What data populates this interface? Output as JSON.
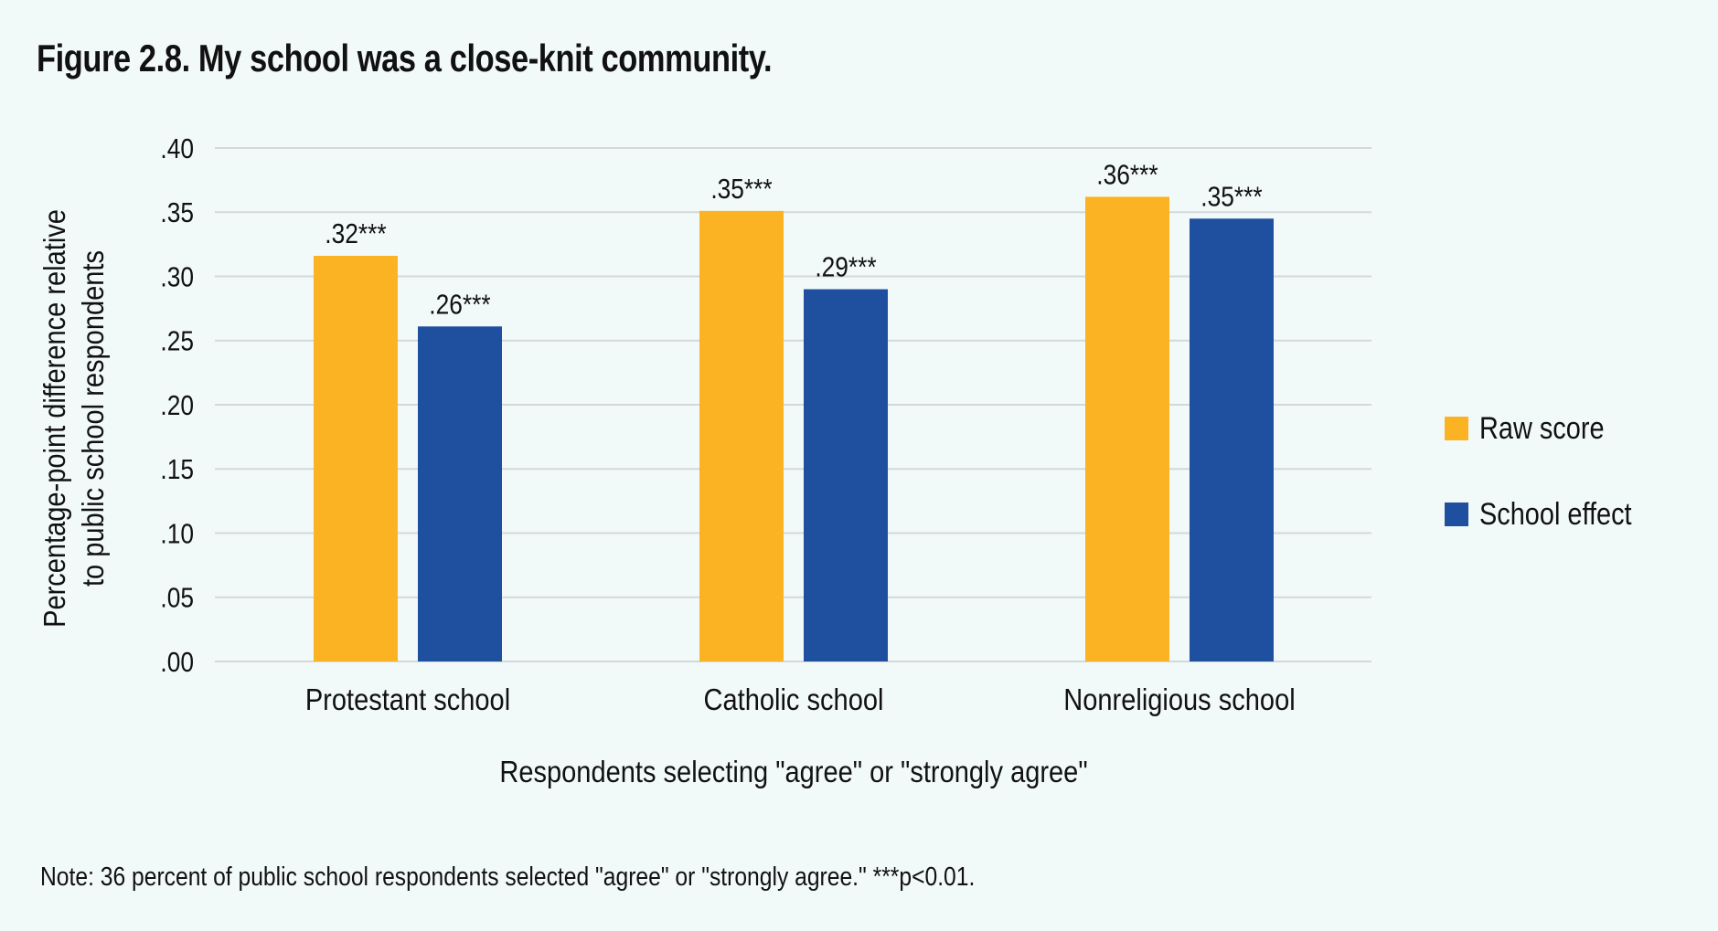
{
  "title": "Figure 2.8. My school was a close-knit community.",
  "note": "Note: 36 percent of public school respondents selected \"agree\" or \"strongly agree.\" ***p<0.01.",
  "colors": {
    "raw": "#fbb323",
    "effect": "#1f50a0",
    "grid": "#d4d8d8",
    "background": "#f2faf9"
  },
  "chart_data": {
    "type": "bar",
    "title": "Figure 2.8. My school was a close-knit community.",
    "categories": [
      "Protestant school",
      "Catholic school",
      "Nonreligious school"
    ],
    "series": [
      {
        "name": "Raw score",
        "values": [
          0.316,
          0.351,
          0.362
        ],
        "labels": [
          ".32***",
          ".35***",
          ".36***"
        ]
      },
      {
        "name": "School effect",
        "values": [
          0.261,
          0.29,
          0.345
        ],
        "labels": [
          ".26***",
          ".29***",
          ".35***"
        ]
      }
    ],
    "xlabel": "Respondents selecting \"agree\" or \"strongly agree\"",
    "ylabel": "Percentage-point difference relative to public school respondents",
    "ylabel_lines": [
      "Percentage-point difference relative",
      "to public school respondents"
    ],
    "ylim": [
      0,
      0.4
    ],
    "yticks": [
      ".00",
      ".05",
      ".10",
      ".15",
      ".20",
      ".25",
      ".30",
      ".35",
      ".40"
    ],
    "grid": true,
    "legend": "right"
  }
}
